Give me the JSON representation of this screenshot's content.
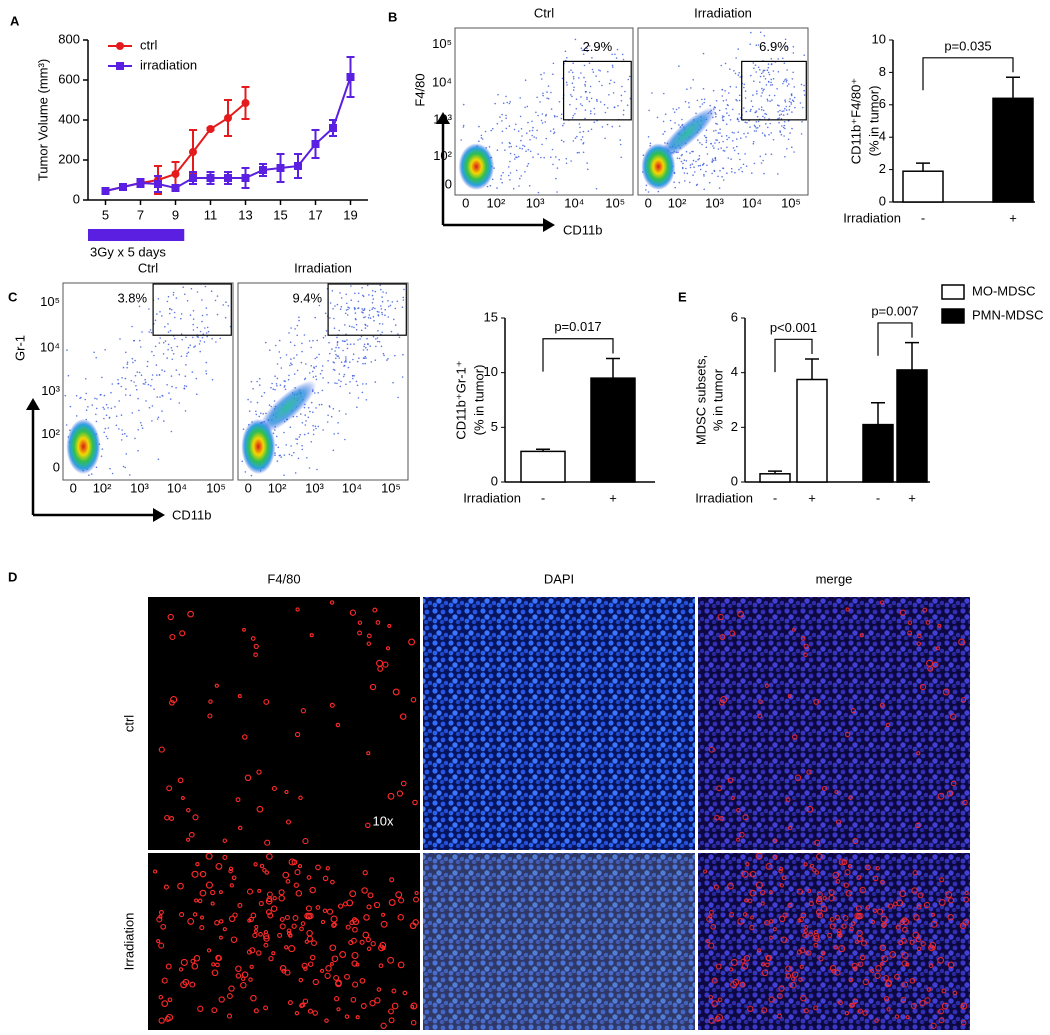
{
  "panel_labels": [
    "A",
    "B",
    "C",
    "D",
    "E"
  ],
  "chart_data": [
    {
      "type": "line",
      "ylabel": "Tumor Volume (mm³)",
      "xlim": [
        4,
        20
      ],
      "xticks": [
        5,
        7,
        9,
        11,
        13,
        15,
        17,
        19
      ],
      "ylim": [
        0,
        800
      ],
      "yticks": [
        0,
        200,
        400,
        600,
        800
      ],
      "series": [
        {
          "name": "ctrl",
          "color": "#e41a1c",
          "marker": "circle",
          "x": [
            5,
            6,
            7,
            8,
            9,
            10,
            11,
            12,
            13
          ],
          "values": [
            45,
            65,
            85,
            100,
            130,
            240,
            355,
            410,
            485
          ],
          "errors": [
            10,
            15,
            20,
            70,
            60,
            110,
            5,
            90,
            80
          ]
        },
        {
          "name": "irradiation",
          "color": "#5a1fe0",
          "marker": "square",
          "x": [
            5,
            6,
            7,
            8,
            9,
            10,
            11,
            12,
            13,
            14,
            15,
            16,
            17,
            18,
            19
          ],
          "values": [
            45,
            65,
            85,
            80,
            60,
            110,
            110,
            110,
            110,
            150,
            160,
            170,
            280,
            360,
            615
          ],
          "errors": [
            10,
            15,
            20,
            40,
            15,
            30,
            30,
            30,
            50,
            30,
            70,
            60,
            70,
            40,
            100
          ]
        }
      ],
      "annotation": {
        "text": "3Gy x 5 days",
        "color": "#5a1fe0",
        "xspan": [
          4,
          9.5
        ]
      }
    },
    {
      "type": "bar",
      "ylabel": [
        "CD11b⁺F4/80⁺",
        "(% in tumor)"
      ],
      "xlabel": "Irradiation",
      "categories": [
        "-",
        "+"
      ],
      "values": [
        1.9,
        6.4
      ],
      "errors": [
        0.5,
        1.3
      ],
      "colors": [
        "#ffffff",
        "#000000"
      ],
      "ylim": [
        0,
        10
      ],
      "yticks": [
        0,
        2,
        4,
        6,
        8,
        10
      ],
      "annotations": [
        "p=0.035"
      ]
    },
    {
      "type": "bar",
      "ylabel": [
        "CD11b⁺Gr-1⁺",
        "(% in tumor)"
      ],
      "xlabel": "Irradiation",
      "categories": [
        "-",
        "+"
      ],
      "values": [
        2.8,
        9.5
      ],
      "errors": [
        0.2,
        1.8
      ],
      "colors": [
        "#ffffff",
        "#000000"
      ],
      "ylim": [
        0,
        15
      ],
      "yticks": [
        0,
        5,
        10,
        15
      ],
      "annotations": [
        "p=0.017"
      ]
    },
    {
      "type": "grouped_bar",
      "ylabel": [
        "MDSC subsets,",
        "% in tumor"
      ],
      "xlabel": "Irradiation",
      "categories": [
        "-",
        "+"
      ],
      "series": [
        {
          "name": "MO-MDSC",
          "color": "#ffffff",
          "values": [
            0.3,
            3.75
          ],
          "errors": [
            0.1,
            0.75
          ]
        },
        {
          "name": "PMN-MDSC",
          "color": "#000000",
          "values": [
            2.1,
            4.1
          ],
          "errors": [
            0.8,
            1.0
          ]
        }
      ],
      "ylim": [
        0,
        6
      ],
      "yticks": [
        0,
        2,
        4,
        6
      ],
      "annotations": [
        "p<0.001",
        "p=0.007"
      ]
    }
  ],
  "flow_plots": [
    {
      "axis_labels": {
        "y": "F4/80",
        "x": "CD11b"
      },
      "plots": [
        {
          "title": "Ctrl",
          "gate": "2.9%"
        },
        {
          "title": "Irradiation",
          "gate": "6.9%"
        }
      ],
      "xtick_labels": [
        "0",
        "10²",
        "10³",
        "10⁴",
        "10⁵"
      ],
      "ytick_labels": [
        "0",
        "10²",
        "10³",
        "10⁴",
        "10⁵"
      ]
    },
    {
      "axis_labels": {
        "y": "Gr-1",
        "x": "CD11b"
      },
      "plots": [
        {
          "title": "Ctrl",
          "gate": "3.8%"
        },
        {
          "title": "Irradiation",
          "gate": "9.4%"
        }
      ],
      "xtick_labels": [
        "0",
        "10²",
        "10³",
        "10⁴",
        "10⁵"
      ],
      "ytick_labels": [
        "0",
        "10²",
        "10³",
        "10⁴",
        "10⁵"
      ]
    }
  ],
  "micrographs": {
    "columns": [
      "F4/80",
      "DAPI",
      "merge"
    ],
    "rows": [
      "ctrl",
      "Irradiation"
    ],
    "magnification": "10x"
  }
}
